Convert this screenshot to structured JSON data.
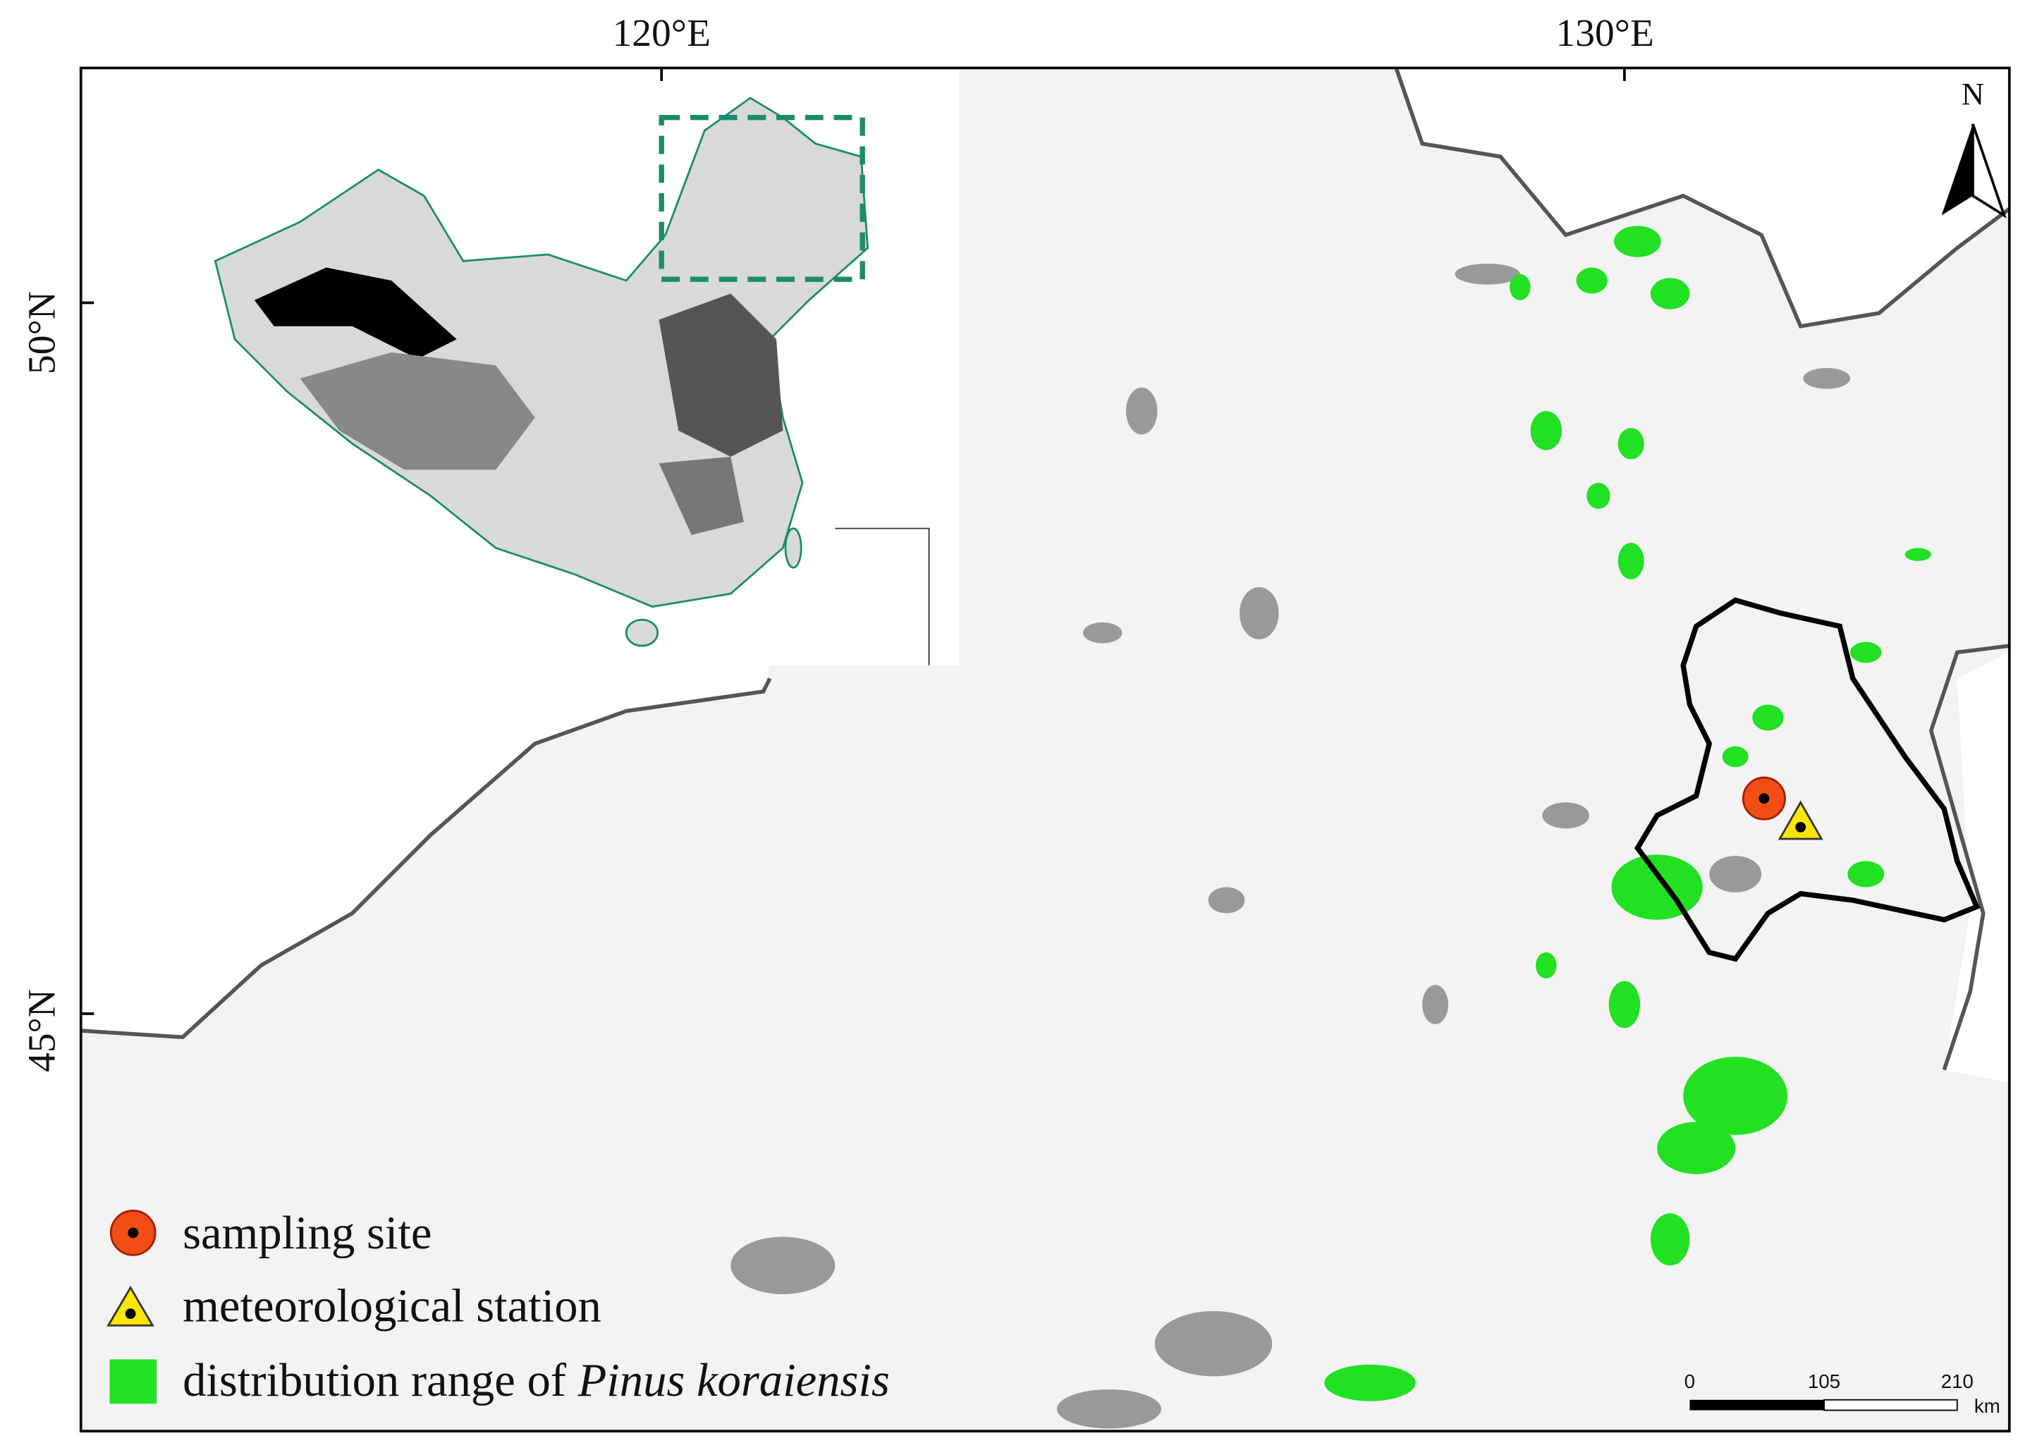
{
  "axes": {
    "top": [
      "120°E",
      "130°E"
    ],
    "left": [
      "50°N",
      "45°N"
    ]
  },
  "north": "N",
  "legend": {
    "sampling_site": "sampling site",
    "meteorological_station": "meteorological station",
    "distribution_prefix": "distribution range of",
    "distribution_species": "Pinus koraiensis"
  },
  "scale_bar": {
    "labels": [
      "0",
      "105",
      "210"
    ],
    "unit": "km"
  }
}
